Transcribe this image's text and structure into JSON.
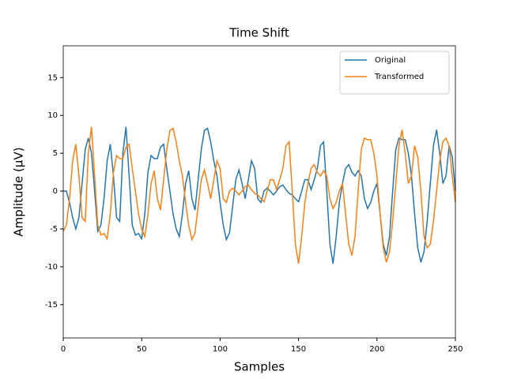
{
  "chart_data": {
    "type": "line",
    "title": "Time Shift",
    "x_label": "Samples",
    "y_label": "Amplitude (µV)",
    "x": [
      0,
      2,
      4,
      6,
      8,
      10,
      12,
      14,
      16,
      18,
      20,
      22,
      24,
      26,
      28,
      30,
      32,
      34,
      36,
      38,
      40,
      42,
      44,
      46,
      48,
      50,
      52,
      54,
      56,
      58,
      60,
      62,
      64,
      66,
      68,
      70,
      72,
      74,
      76,
      78,
      80,
      82,
      84,
      86,
      88,
      90,
      92,
      94,
      96,
      98,
      100,
      102,
      104,
      106,
      108,
      110,
      112,
      114,
      116,
      118,
      120,
      122,
      124,
      126,
      128,
      130,
      132,
      134,
      136,
      138,
      140,
      142,
      144,
      146,
      148,
      150,
      152,
      154,
      156,
      158,
      160,
      162,
      164,
      166,
      168,
      170,
      172,
      174,
      176,
      178,
      180,
      182,
      184,
      186,
      188,
      190,
      192,
      194,
      196,
      198,
      200,
      202,
      204,
      206,
      208,
      210,
      212,
      214,
      216,
      218,
      220,
      222,
      224,
      226,
      228,
      230,
      232,
      234,
      236,
      238,
      240,
      242,
      244,
      246,
      248,
      250
    ],
    "series": [
      {
        "name": "Original",
        "color": "#1f77b4",
        "values": [
          0,
          0,
          -1.5,
          -3.5,
          -5,
          -3.5,
          1,
          5.5,
          7,
          5,
          0,
          -5.3,
          -4.5,
          -1,
          4,
          6.2,
          2,
          -3.5,
          -4,
          5,
          8.5,
          2,
          -4.5,
          -5.8,
          -5.6,
          -6.3,
          -3,
          2.5,
          4.7,
          4.3,
          4.3,
          5.8,
          6.2,
          3,
          0,
          -3,
          -5,
          -6,
          -3,
          1,
          2.7,
          -1,
          -2.5,
          1.5,
          5.5,
          8,
          8.3,
          6.5,
          4,
          2,
          -1.5,
          -4.5,
          -6.4,
          -5.5,
          -2,
          1.5,
          2.8,
          1,
          -1,
          1.5,
          4,
          3,
          -1,
          -1.5,
          0,
          0.4,
          0,
          -0.5,
          0,
          0.6,
          0.8,
          0.2,
          -0.3,
          -0.5,
          -1,
          -1.4,
          0,
          1.5,
          1.5,
          0.2,
          1.5,
          3,
          6,
          6.5,
          0,
          -7,
          -9.6,
          -6,
          -1.5,
          1,
          3,
          3.5,
          2.5,
          2,
          2.7,
          2,
          -1,
          -2.3,
          -1.5,
          0,
          1,
          -3,
          -7,
          -8.5,
          -6,
          0,
          5.5,
          7,
          6.8,
          6.8,
          5,
          2,
          -3,
          -7.5,
          -9.4,
          -8,
          -4,
          1,
          6,
          8.1,
          5,
          1,
          2,
          6,
          4.5,
          0
        ]
      },
      {
        "name": "Transformed",
        "color": "#ff7f0e",
        "values": [
          -5.3,
          -4.5,
          -1,
          4,
          6.2,
          2,
          -3.5,
          -4,
          5,
          8.5,
          2,
          -4.5,
          -5.8,
          -5.6,
          -6.3,
          -3,
          2.5,
          4.7,
          4.3,
          4.3,
          5.8,
          6.2,
          3,
          0,
          -3,
          -5,
          -6,
          -3,
          1,
          2.7,
          -1,
          -2.5,
          1.5,
          5.5,
          8,
          8.3,
          6.5,
          4,
          2,
          -1.5,
          -4.5,
          -6.4,
          -5.5,
          -2,
          1.5,
          2.8,
          1,
          -1,
          1.5,
          4,
          3,
          -1,
          -1.5,
          0,
          0.4,
          0,
          -0.5,
          0,
          0.6,
          0.8,
          0.2,
          -0.3,
          -0.5,
          -1,
          -1.4,
          0,
          1.5,
          1.5,
          0.2,
          1.5,
          3,
          6,
          6.5,
          0,
          -7,
          -9.6,
          -6,
          -1.5,
          1,
          3,
          3.5,
          2.5,
          2,
          2.7,
          2,
          -1,
          -2.3,
          -1.5,
          0,
          1,
          -3,
          -7,
          -8.5,
          -6,
          0,
          5.5,
          7,
          6.8,
          6.8,
          5,
          2,
          -3,
          -7.5,
          -9.4,
          -8,
          -4,
          1,
          6,
          8.1,
          5,
          1,
          2,
          6,
          4.5,
          0,
          -6,
          -7.5,
          -7,
          -4,
          0,
          4,
          6.5,
          7,
          6,
          2,
          -1.5
        ]
      }
    ],
    "xlim": [
      0,
      250
    ],
    "xticks": [
      0,
      50,
      100,
      150,
      200,
      250
    ],
    "ylim": [
      -19.4,
      19.2
    ],
    "yticks": [
      -15,
      -10,
      -5,
      0,
      5,
      10,
      15
    ],
    "legend": "upper right"
  }
}
